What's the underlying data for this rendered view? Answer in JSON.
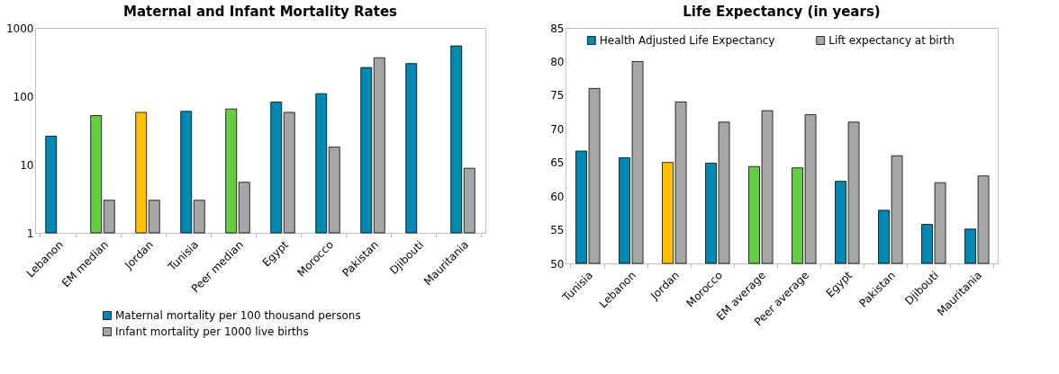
{
  "chart_data": [
    {
      "type": "bar",
      "title": "Maternal and Infant Mortality Rates",
      "categories": [
        "Lebanon",
        "EM median",
        "Jordan",
        "Tunisia",
        "Peer median",
        "Egypt",
        "Morocco",
        "Pakistan",
        "Djibouti",
        "Mauritania"
      ],
      "log": "y",
      "ylim": [
        1,
        1000
      ],
      "yticks": [
        1,
        10,
        100,
        1000
      ],
      "grid": false,
      "legend": "bottom",
      "series": [
        {
          "name": "Maternal mortality per 100 thousand persons",
          "color": "#0089b0",
          "colors": [
            "#0089b0",
            "#66cc44",
            "#ffc000",
            "#0089b0",
            "#66cc44",
            "#0089b0",
            "#0089b0",
            "#0089b0",
            "#0089b0",
            "#0089b0"
          ],
          "values": [
            26,
            52,
            58,
            60,
            65,
            82,
            109,
            263,
            301,
            545
          ]
        },
        {
          "name": "Infant mortality per 1000 live births",
          "color": "#a6a6a6",
          "values": [
            null,
            3,
            3,
            3,
            5.5,
            58,
            18,
            365,
            null,
            8.8
          ]
        }
      ]
    },
    {
      "type": "bar",
      "title": "Life Expectancy (in years)",
      "categories": [
        "Tunisia",
        "Lebanon",
        "Jordan",
        "Morocco",
        "EM average",
        "Peer average",
        "Egypt",
        "Pakistan",
        "Djibouti",
        "Mauritania"
      ],
      "ylim": [
        50,
        85
      ],
      "yticks": [
        50,
        55,
        60,
        65,
        70,
        75,
        80,
        85
      ],
      "grid": false,
      "legend": "top",
      "series": [
        {
          "name": "Health Adjusted Life Expectancy",
          "color": "#0089b0",
          "colors": [
            "#0089b0",
            "#0089b0",
            "#ffc000",
            "#0089b0",
            "#66cc44",
            "#66cc44",
            "#0089b0",
            "#0089b0",
            "#0089b0",
            "#0089b0"
          ],
          "values": [
            66.7,
            65.7,
            65.0,
            64.9,
            64.4,
            64.2,
            62.2,
            57.9,
            55.8,
            55.1
          ]
        },
        {
          "name": "Lift expectancy at birth",
          "color": "#a6a6a6",
          "values": [
            76,
            80,
            74,
            71,
            72.7,
            72.1,
            71,
            66,
            62,
            63
          ]
        }
      ]
    }
  ]
}
